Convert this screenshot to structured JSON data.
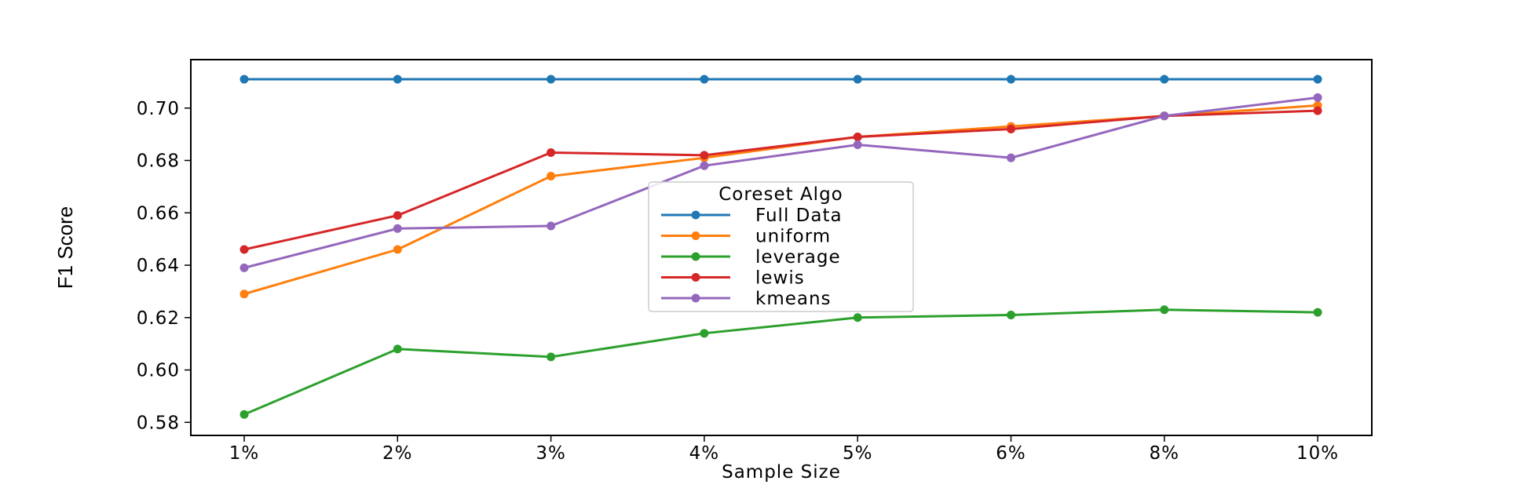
{
  "chart_data": {
    "type": "line",
    "xlabel": "Sample Size",
    "ylabel": "F1 Score",
    "categories": [
      "1%",
      "2%",
      "3%",
      "4%",
      "5%",
      "6%",
      "8%",
      "10%"
    ],
    "ylim": [
      0.575,
      0.7185
    ],
    "yticks": [
      0.58,
      0.6,
      0.62,
      0.64,
      0.66,
      0.68,
      0.7
    ],
    "ytick_labels": [
      "0.58",
      "0.60",
      "0.62",
      "0.64",
      "0.66",
      "0.68",
      "0.70"
    ],
    "grid": false,
    "legend": {
      "title": "Coreset Algo",
      "placement": "center"
    },
    "series": [
      {
        "name": "Full Data",
        "color": "#1f77b4",
        "values": [
          0.711,
          0.711,
          0.711,
          0.711,
          0.711,
          0.711,
          0.711,
          0.711
        ]
      },
      {
        "name": "uniform",
        "color": "#ff7f0e",
        "values": [
          0.629,
          0.646,
          0.674,
          0.681,
          0.689,
          0.693,
          0.697,
          0.701
        ]
      },
      {
        "name": "leverage",
        "color": "#2ca02c",
        "values": [
          0.583,
          0.608,
          0.605,
          0.614,
          0.62,
          0.621,
          0.623,
          0.622
        ]
      },
      {
        "name": "lewis",
        "color": "#d62728",
        "values": [
          0.646,
          0.659,
          0.683,
          0.682,
          0.689,
          0.692,
          0.697,
          0.699
        ]
      },
      {
        "name": "kmeans",
        "color": "#9467bd",
        "values": [
          0.639,
          0.654,
          0.655,
          0.678,
          0.686,
          0.681,
          0.697,
          0.704
        ]
      }
    ]
  }
}
